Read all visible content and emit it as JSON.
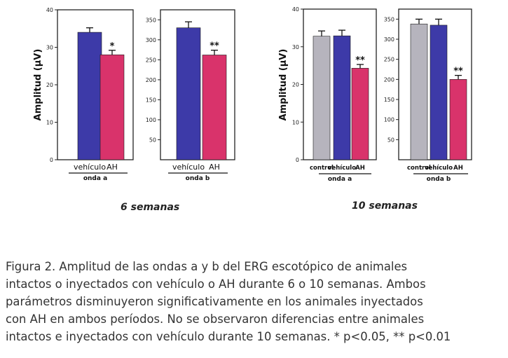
{
  "chart_data": [
    {
      "type": "bar",
      "ylabel": "Amplitud (µV)",
      "ylim": [
        0,
        40
      ],
      "yticks": [
        "0",
        "10",
        "20",
        "30",
        "40"
      ],
      "categories": [
        "vehículo",
        "AH"
      ],
      "values": [
        34,
        28
      ],
      "errors": [
        1.2,
        1.2
      ],
      "sig": [
        "",
        "*"
      ],
      "group": "onda a",
      "colors": [
        "#3d3aa8",
        "#d9336b"
      ]
    },
    {
      "type": "bar",
      "ylabel": "",
      "ylim": [
        0,
        375
      ],
      "yticks": [
        "50",
        "100",
        "150",
        "200",
        "250",
        "300",
        "350"
      ],
      "categories": [
        "vehículo",
        "AH"
      ],
      "values": [
        330,
        262
      ],
      "errors": [
        15,
        12
      ],
      "sig": [
        "",
        "**"
      ],
      "group": "onda b",
      "colors": [
        "#3d3aa8",
        "#d9336b"
      ]
    },
    {
      "type": "bar",
      "ylabel": "Amplitud (µV)",
      "ylim": [
        0,
        40
      ],
      "yticks": [
        "0",
        "10",
        "20",
        "30",
        "40"
      ],
      "categories": [
        "control",
        "vehículo",
        "AH"
      ],
      "values": [
        32.8,
        32.9,
        24.3
      ],
      "errors": [
        1.4,
        1.5,
        1.0
      ],
      "sig": [
        "",
        "",
        "**"
      ],
      "group": "onda a",
      "colors": [
        "#b6b4bd",
        "#3d3aa8",
        "#d9336b"
      ]
    },
    {
      "type": "bar",
      "ylabel": "",
      "ylim": [
        0,
        375
      ],
      "yticks": [
        "50",
        "100",
        "150",
        "200",
        "250",
        "300",
        "350"
      ],
      "categories": [
        "control",
        "vehículo",
        "AH"
      ],
      "values": [
        338,
        335,
        200
      ],
      "errors": [
        12,
        15,
        10
      ],
      "sig": [
        "",
        "",
        "**"
      ],
      "group": "onda b",
      "colors": [
        "#b6b4bd",
        "#3d3aa8",
        "#d9336b"
      ]
    }
  ],
  "labels": {
    "six_weeks": "6 semanas",
    "ten_weeks": "10 semanas"
  },
  "caption": {
    "lines": [
      "Figura 2. Amplitud de las ondas a y b del ERG escotópico de animales",
      "intactos o inyectados con vehículo o AH durante 6 o 10 semanas. Ambos",
      "parámetros disminuyeron significativamente en los animales inyectados",
      "con AH en ambos períodos. No se observaron diferencias entre animales",
      "intactos e inyectados con vehículo durante 10 semanas. * p<0.05, ** p<0.01"
    ]
  }
}
